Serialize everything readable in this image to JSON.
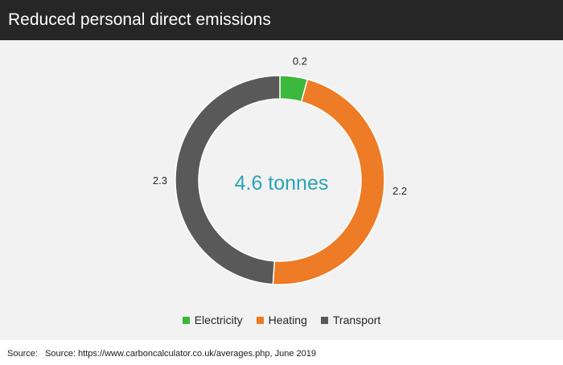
{
  "header": {
    "title": "Reduced personal direct emissions"
  },
  "source": {
    "label": "Source:",
    "text": "Source: https://www.carboncalculator.co.uk/averages.php, June 2019"
  },
  "chart_data": {
    "type": "pie",
    "variant": "doughnut",
    "title": "",
    "center_label": "4.6 tonnes",
    "center_label_color": "#2aa3b8",
    "categories": [
      "Electricity",
      "Heating",
      "Transport"
    ],
    "values": [
      0.2,
      2.2,
      2.3
    ],
    "data_labels": [
      "0.2",
      "2.2",
      "2.3"
    ],
    "colors": [
      "#3cb83c",
      "#ee7b25",
      "#595959"
    ],
    "legend": {
      "position": "bottom",
      "items": [
        "Electricity",
        "Heating",
        "Transport"
      ]
    }
  }
}
